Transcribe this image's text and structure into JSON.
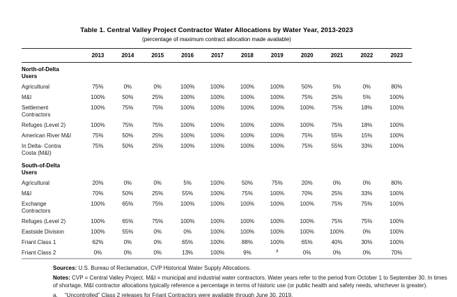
{
  "page": {
    "title": "Table 1. Central Valley Project Contractor Water Allocations by Water Year, 2013-2023",
    "subtitle": "(percentage of maximum contract allocation made available)"
  },
  "table": {
    "years": [
      "2013",
      "2014",
      "2015",
      "2016",
      "2017",
      "2018",
      "2019",
      "2020",
      "2021",
      "2022",
      "2023"
    ],
    "sections": [
      {
        "label": "North-of-Delta\nUsers",
        "rows": [
          {
            "label": "Agricultural",
            "values": [
              "75%",
              "0%",
              "0%",
              "100%",
              "100%",
              "100%",
              "100%",
              "50%",
              "5%",
              "0%",
              "80%"
            ]
          },
          {
            "label": "M&I",
            "values": [
              "100%",
              "50%",
              "25%",
              "100%",
              "100%",
              "100%",
              "100%",
              "75%",
              "25%",
              "5%",
              "100%"
            ]
          },
          {
            "label": "Settlement Contractors",
            "values": [
              "100%",
              "75%",
              "75%",
              "100%",
              "100%",
              "100%",
              "100%",
              "100%",
              "75%",
              "18%",
              "100%"
            ]
          },
          {
            "label": "Refuges (Level 2)",
            "values": [
              "100%",
              "75%",
              "75%",
              "100%",
              "100%",
              "100%",
              "100%",
              "100%",
              "75%",
              "18%",
              "100%"
            ]
          },
          {
            "label": "American River M&I",
            "values": [
              "75%",
              "50%",
              "25%",
              "100%",
              "100%",
              "100%",
              "100%",
              "75%",
              "55%",
              "15%",
              "100%"
            ]
          },
          {
            "label": "In Delta- Contra Costa (M&I)",
            "values": [
              "75%",
              "50%",
              "25%",
              "100%",
              "100%",
              "100%",
              "100%",
              "75%",
              "55%",
              "33%",
              "100%"
            ]
          }
        ]
      },
      {
        "label": "South-of-Delta\nUsers",
        "rows": [
          {
            "label": "Agricultural",
            "values": [
              "20%",
              "0%",
              "0%",
              "5%",
              "100%",
              "50%",
              "75%",
              "20%",
              "0%",
              "0%",
              "80%"
            ]
          },
          {
            "label": "M&I",
            "values": [
              "70%",
              "50%",
              "25%",
              "55%",
              "100%",
              "75%",
              "100%",
              "70%",
              "25%",
              "33%",
              "100%"
            ]
          },
          {
            "label": "Exchange Contractors",
            "values": [
              "100%",
              "65%",
              "75%",
              "100%",
              "100%",
              "100%",
              "100%",
              "100%",
              "75%",
              "75%",
              "100%"
            ]
          },
          {
            "label": "Refuges (Level 2)",
            "values": [
              "100%",
              "65%",
              "75%",
              "100%",
              "100%",
              "100%",
              "100%",
              "100%",
              "75%",
              "75%",
              "100%"
            ]
          },
          {
            "label": "Eastside Division",
            "values": [
              "100%",
              "55%",
              "0%",
              "0%",
              "100%",
              "100%",
              "100%",
              "100%",
              "100%",
              "0%",
              "100%"
            ]
          },
          {
            "label": "Friant Class 1",
            "values": [
              "62%",
              "0%",
              "0%",
              "65%",
              "100%",
              "88%",
              "100%",
              "65%",
              "40%",
              "30%",
              "100%"
            ]
          },
          {
            "label": "Friant Class 2",
            "values": [
              "0%",
              "0%",
              "0%",
              "13%",
              "100%",
              "9%",
              "^a",
              "0%",
              "0%",
              "0%",
              "70%"
            ]
          }
        ]
      }
    ]
  },
  "footnotes": {
    "sources_label": "Sources:",
    "sources_text": "U.S. Bureau of Reclamation, CVP Historical Water Supply Allocations.",
    "notes_label": "Notes:",
    "notes_text": "CVP = Central Valley Project. M&I = municipal and industrial water contractors. Water years refer to the period from October 1 to September 30. In times of shortage, M&I contractor allocations typically reference a percentage in terms of historic use (or public health and safety needs, whichever is greater).",
    "footnote_a_label": "a.",
    "footnote_a_text": "“Uncontrolled” Class 2 releases for Friant Contractors were available through June 30, 2019."
  },
  "colors": {
    "text": "#111111",
    "header_rule": "#2b2b2b",
    "bottom_rule": "#b7bdc4"
  }
}
